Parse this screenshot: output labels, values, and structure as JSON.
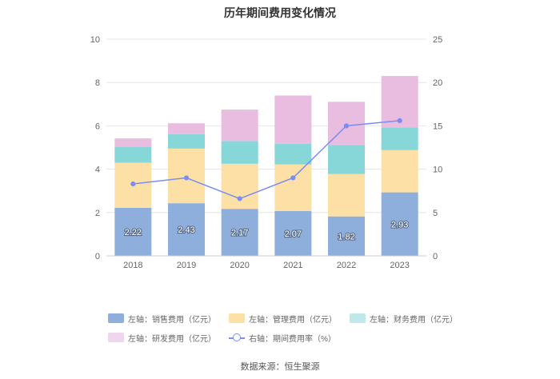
{
  "chart_data": {
    "type": "bar",
    "stacked": true,
    "title": "历年期间费用变化情况",
    "categories": [
      "2018",
      "2019",
      "2020",
      "2021",
      "2022",
      "2023"
    ],
    "left_axis": {
      "min": 0,
      "max": 10,
      "ticks": [
        "0",
        "2",
        "4",
        "6",
        "8",
        "10"
      ]
    },
    "right_axis": {
      "min": 0,
      "max": 25,
      "ticks": [
        "0",
        "5",
        "10",
        "15",
        "20",
        "25"
      ]
    },
    "series": [
      {
        "name": "左轴：销售费用（亿元）",
        "color": "#8eaedc",
        "axis": "left",
        "values": [
          2.22,
          2.43,
          2.17,
          2.07,
          1.82,
          2.93
        ],
        "labels": [
          "2.22",
          "2.43",
          "2.17",
          "2.07",
          "1.82",
          "2.93"
        ]
      },
      {
        "name": "左轴：管理费用（亿元）",
        "color": "#fde0a6",
        "axis": "left",
        "values": [
          2.08,
          2.52,
          2.08,
          2.15,
          1.96,
          1.95
        ]
      },
      {
        "name": "左轴：财务费用（亿元）",
        "color": "#87d7d9",
        "axis": "left",
        "values": [
          0.72,
          0.67,
          1.05,
          0.95,
          1.33,
          1.04
        ]
      },
      {
        "name": "左轴：研发费用（亿元）",
        "color": "#e8bddf",
        "axis": "left",
        "values": [
          0.4,
          0.5,
          1.45,
          2.23,
          2.0,
          2.38
        ]
      },
      {
        "name": "右轴：期间费用率（%）",
        "color": "#7b8cf5",
        "axis": "right",
        "type": "line",
        "values": [
          8.3,
          9.0,
          6.6,
          9.0,
          15.0,
          15.6
        ]
      }
    ]
  },
  "source": "数据来源：恒生聚源"
}
